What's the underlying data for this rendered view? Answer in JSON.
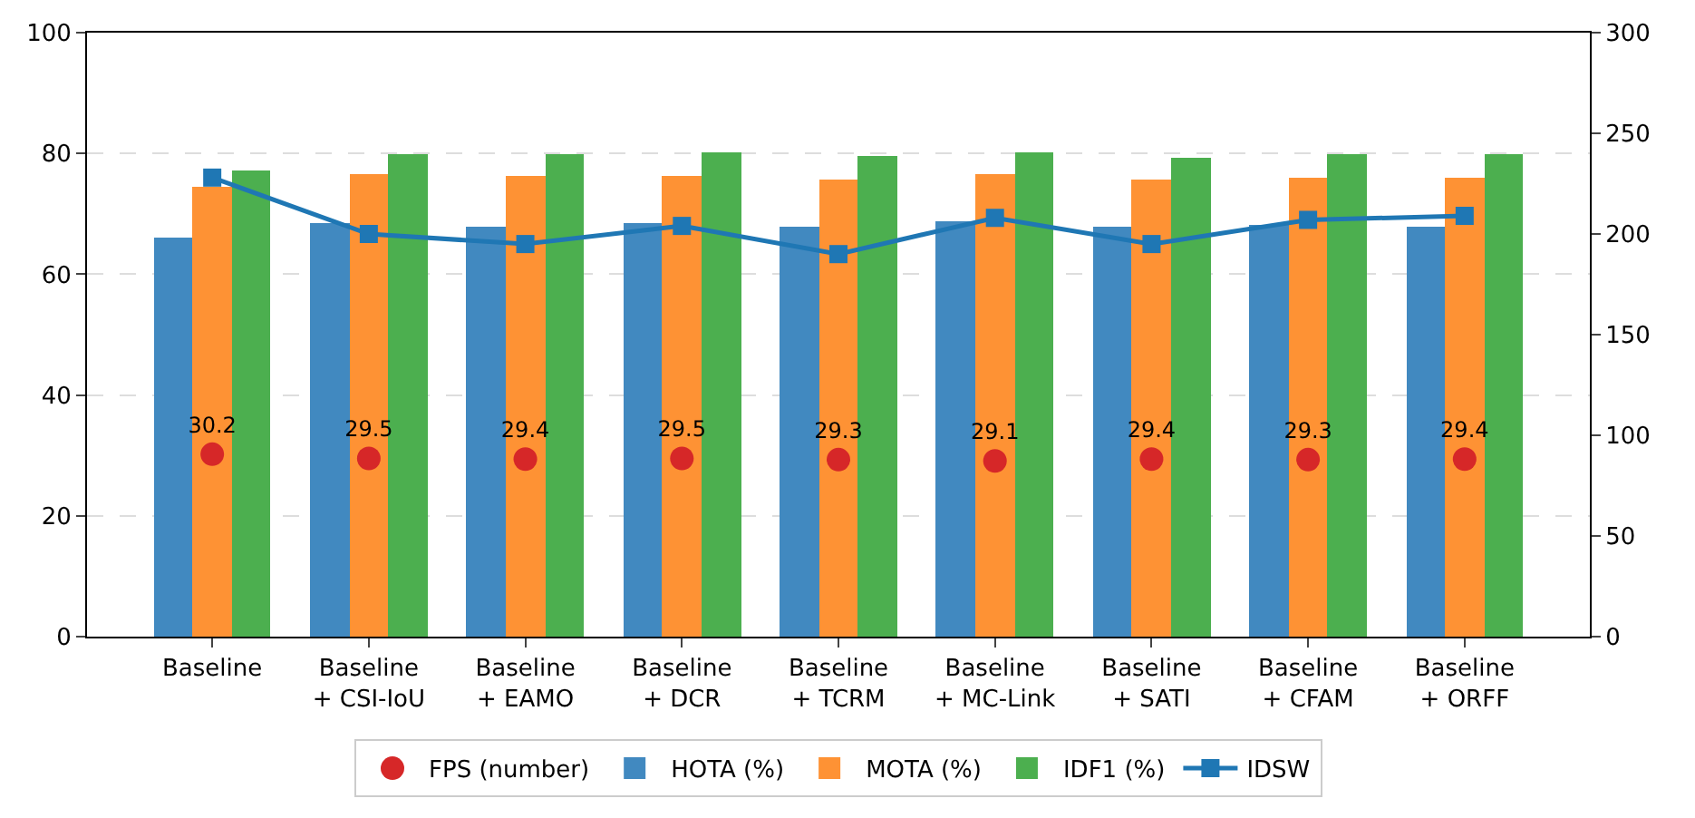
{
  "chart_data": {
    "type": "bar",
    "categories": [
      "Baseline",
      "Baseline\n+ CSI-IoU",
      "Baseline\n+ EAMO",
      "Baseline\n+ DCR",
      "Baseline\n+ TCRM",
      "Baseline\n+ MC-Link",
      "Baseline\n+ SATI",
      "Baseline\n+ CFAM",
      "Baseline\n+ ORFF"
    ],
    "series": [
      {
        "name": "FPS (number)",
        "type": "scatter",
        "marker": "circle",
        "color": "#d62728",
        "values": [
          30.2,
          29.5,
          29.4,
          29.5,
          29.3,
          29.1,
          29.4,
          29.3,
          29.4
        ],
        "value_labels": [
          "30.2",
          "29.5",
          "29.4",
          "29.5",
          "29.3",
          "29.1",
          "29.4",
          "29.3",
          "29.4"
        ]
      },
      {
        "name": "HOTA (%)",
        "color": "#4189c0",
        "values": [
          66.0,
          68.5,
          67.8,
          68.5,
          68.0,
          68.8,
          67.8,
          68.1,
          67.8
        ]
      },
      {
        "name": "MOTA (%)",
        "color": "#fe9234",
        "values": [
          74.6,
          76.6,
          76.2,
          76.2,
          75.7,
          76.5,
          75.6,
          76.1,
          76.1
        ]
      },
      {
        "name": "IDF1 (%)",
        "color": "#4caf4f",
        "values": [
          77.3,
          79.8,
          79.8,
          80.1,
          79.6,
          80.3,
          79.4,
          79.9,
          79.8
        ]
      },
      {
        "name": "IDSW",
        "type": "line",
        "axis": "y2",
        "marker": "square",
        "line_style": "solid",
        "color": "#1f77b4",
        "values": [
          228,
          200,
          195,
          204,
          190,
          208,
          195,
          207,
          209
        ]
      }
    ],
    "ylim": [
      0,
      100
    ],
    "yticks": [
      0,
      20,
      40,
      60,
      80,
      100
    ],
    "y2lim": [
      0,
      300
    ],
    "y2ticks": [
      0,
      50,
      100,
      150,
      200,
      250,
      300
    ],
    "grid": "y",
    "legend": "bottom"
  }
}
